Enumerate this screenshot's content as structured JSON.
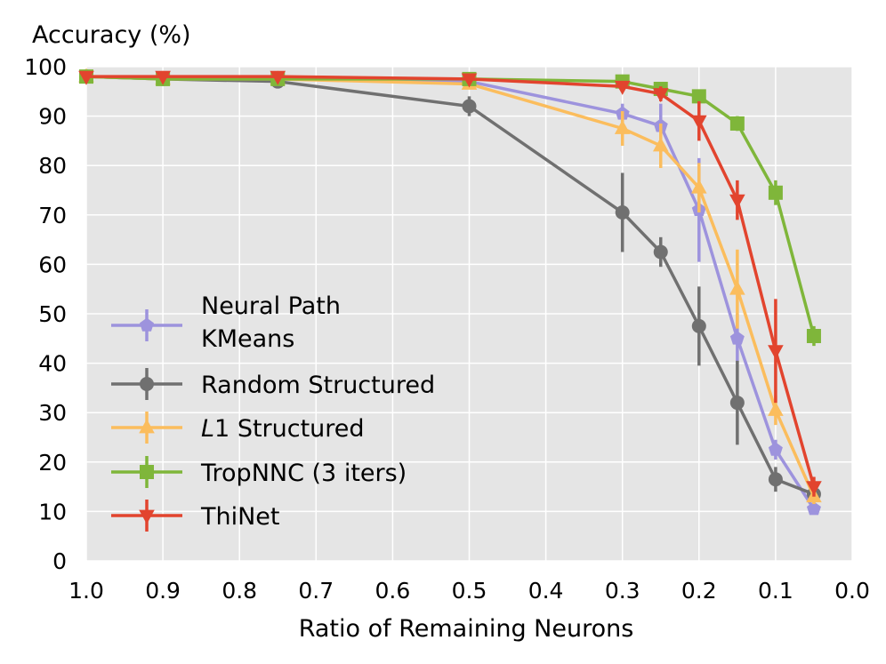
{
  "chart_data": {
    "type": "line",
    "title": "",
    "ylabel": "Accuracy (%)",
    "xlabel": "Ratio of Remaining Neurons",
    "xlim": [
      1.0,
      0.0
    ],
    "ylim": [
      0,
      100
    ],
    "x_ticks": [
      "1.0",
      "0.9",
      "0.8",
      "0.7",
      "0.6",
      "0.5",
      "0.4",
      "0.3",
      "0.2",
      "0.1",
      "0.0"
    ],
    "y_ticks": [
      "0",
      "10",
      "20",
      "30",
      "40",
      "50",
      "60",
      "70",
      "80",
      "90",
      "100"
    ],
    "grid": true,
    "legend_position": "bottom-left",
    "x": [
      1.0,
      0.9,
      0.75,
      0.5,
      0.3,
      0.25,
      0.2,
      0.15,
      0.1,
      0.05
    ],
    "series": [
      {
        "name_lines": [
          "Neural Path",
          "KMeans"
        ],
        "color": "#9d93dd",
        "marker": "pentagon",
        "values": [
          98,
          97.5,
          97.5,
          97,
          90.5,
          88,
          71,
          45,
          22.5,
          10.5
        ],
        "errors": [
          0.5,
          0.5,
          0.5,
          1,
          2,
          4.5,
          10.5,
          5,
          2,
          1
        ]
      },
      {
        "name_lines": [
          "Random Structured"
        ],
        "color": "#707070",
        "marker": "circle",
        "values": [
          98,
          97.5,
          97,
          92,
          70.5,
          62.5,
          47.5,
          32,
          16.5,
          13.5
        ],
        "errors": [
          0.5,
          0.5,
          0.5,
          2,
          8,
          3,
          8,
          8.5,
          2.5,
          1
        ]
      },
      {
        "name_lines": [
          "L1 Structured"
        ],
        "name_italic": "L",
        "name_digit": "1",
        "name_rest": " Structured",
        "color": "#fbbd5d",
        "marker": "triangle-up",
        "values": [
          98,
          97.5,
          97.5,
          96.5,
          87.5,
          84,
          75.5,
          55,
          30.5,
          13
        ],
        "errors": [
          0.5,
          0.5,
          0.5,
          1,
          3.5,
          4.5,
          5,
          8,
          3,
          1.5
        ]
      },
      {
        "name_lines": [
          "TropNNC (3 iters)"
        ],
        "color": "#7fb63a",
        "marker": "square",
        "values": [
          98,
          97.5,
          97.5,
          97.5,
          97,
          95.5,
          94,
          88.5,
          74.5,
          45.5
        ],
        "errors": [
          0.3,
          0.3,
          0.3,
          0.3,
          0.5,
          0.8,
          0.8,
          1.5,
          2.5,
          2
        ]
      },
      {
        "name_lines": [
          "ThiNet"
        ],
        "color": "#e2442e",
        "marker": "triangle-down",
        "values": [
          98,
          98,
          98,
          97.5,
          96,
          94.5,
          89,
          73,
          42.5,
          15
        ],
        "errors": [
          0.3,
          0.3,
          0.3,
          0.5,
          1,
          1.5,
          4,
          4,
          10.5,
          2
        ]
      }
    ]
  }
}
